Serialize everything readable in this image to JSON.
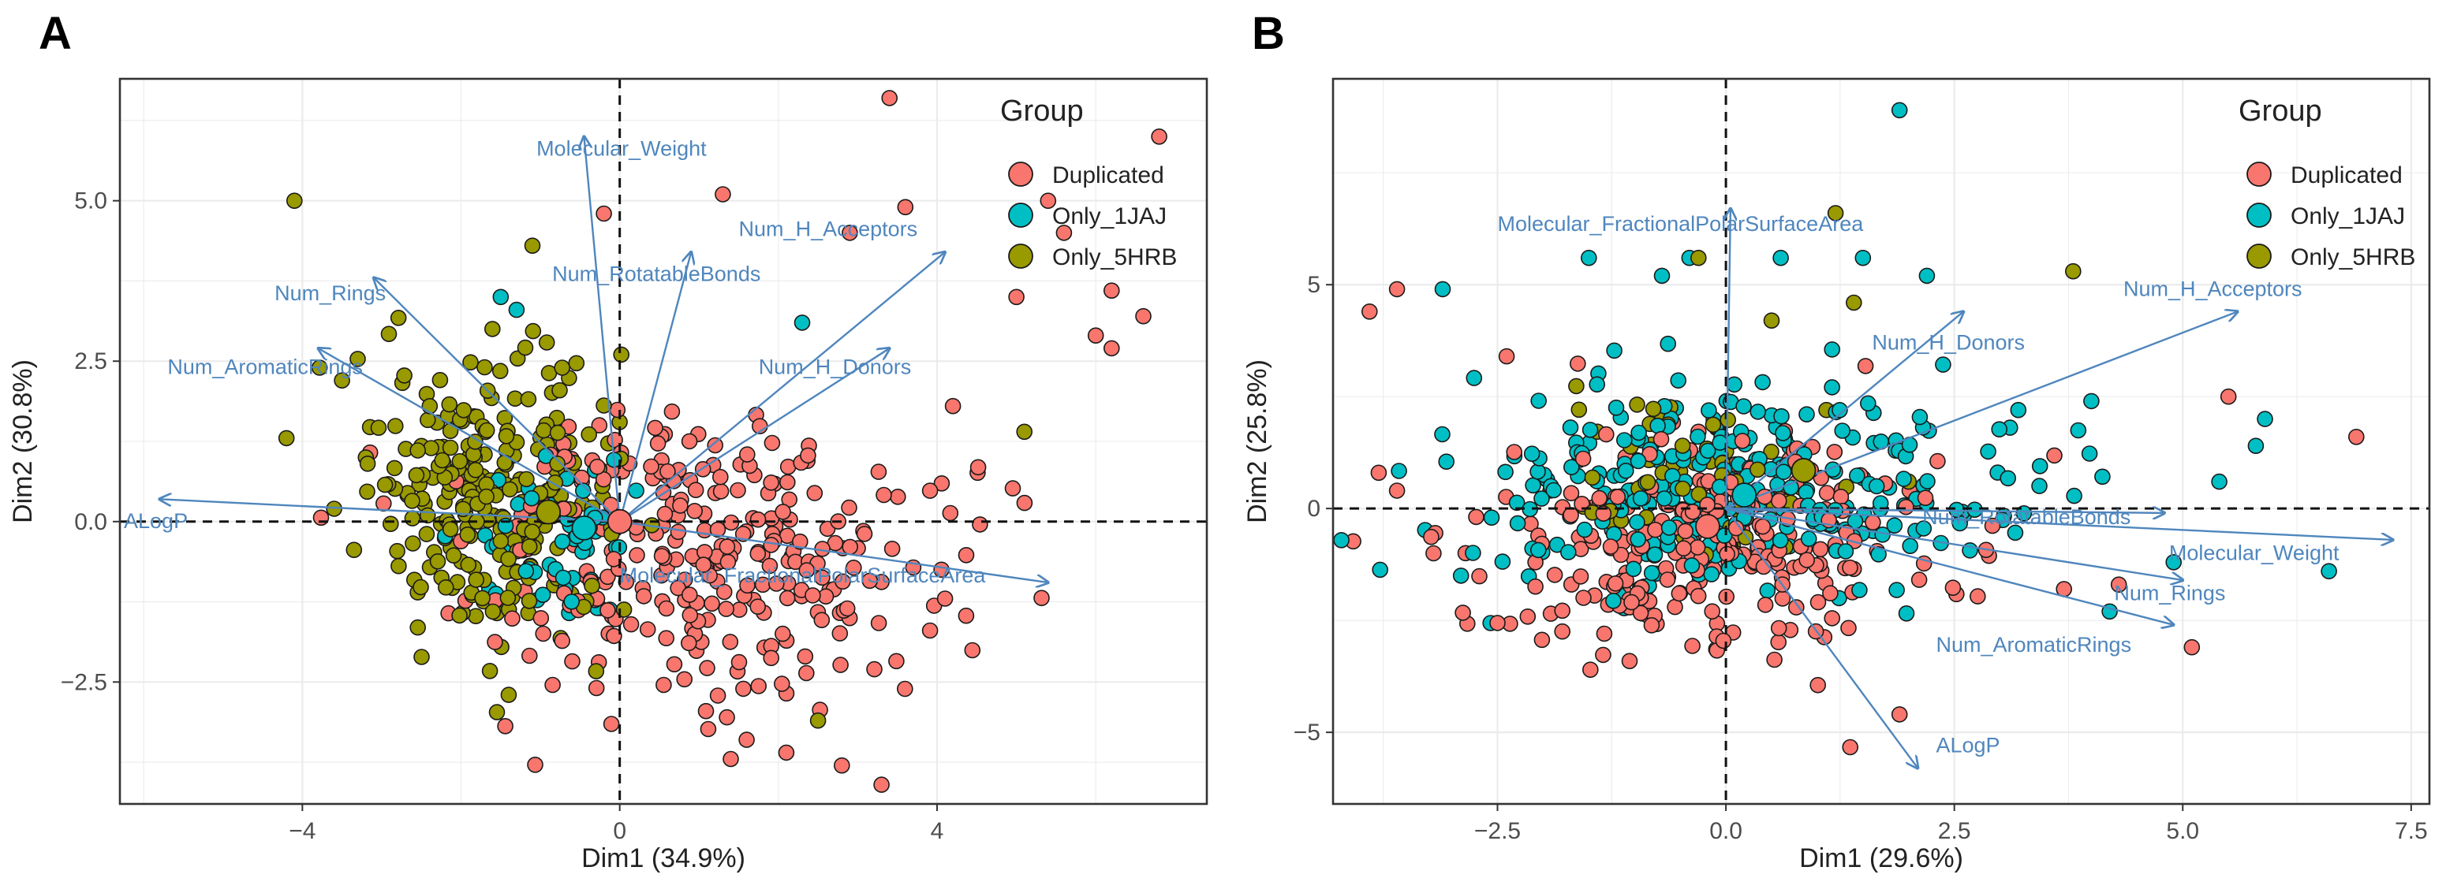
{
  "chart_data": [
    {
      "panel": "A",
      "type": "scatter",
      "subtype": "pca-biplot",
      "xlabel": "Dim1 (34.9%)",
      "ylabel": "Dim2 (30.8%)",
      "xlim": [
        -6.3,
        7.4
      ],
      "ylim": [
        -4.4,
        6.9
      ],
      "xticks": [
        -4,
        0,
        4
      ],
      "xtick_labels": [
        "−4",
        "0",
        "4"
      ],
      "yticks": [
        -2.5,
        0.0,
        2.5,
        5.0
      ],
      "ytick_labels": [
        "−2.5",
        "0.0",
        "2.5",
        "5.0"
      ],
      "grid": true,
      "legend": {
        "title": "Group",
        "position": "top-right",
        "entries": [
          "Duplicated",
          "Only_1JAJ",
          "Only_5HRB"
        ]
      },
      "clouds": [
        {
          "group": "Duplicated",
          "center": [
            1.0,
            -0.6
          ],
          "spread": [
            1.45,
            1.15
          ],
          "n": 300
        },
        {
          "group": "Only_5HRB",
          "center": [
            -1.7,
            0.5
          ],
          "spread": [
            0.75,
            1.05
          ],
          "n": 260
        },
        {
          "group": "Only_1JAJ",
          "center": [
            -0.8,
            -0.2
          ],
          "spread": [
            0.55,
            0.6
          ],
          "n": 60
        }
      ],
      "outliers": [
        {
          "group": "Duplicated",
          "points": [
            [
              3.4,
              6.6
            ],
            [
              6.8,
              6.0
            ],
            [
              6.2,
              3.6
            ],
            [
              6.6,
              3.2
            ],
            [
              6.0,
              2.9
            ],
            [
              6.2,
              2.7
            ],
            [
              5.6,
              4.5
            ],
            [
              5.4,
              5.0
            ],
            [
              1.3,
              5.1
            ],
            [
              -0.2,
              4.8
            ],
            [
              2.9,
              4.5
            ],
            [
              3.6,
              4.9
            ],
            [
              5.0,
              3.5
            ],
            [
              4.2,
              1.8
            ],
            [
              2.1,
              -3.6
            ],
            [
              1.4,
              -3.7
            ],
            [
              2.8,
              -3.8
            ],
            [
              3.3,
              -4.1
            ],
            [
              1.6,
              -3.4
            ],
            [
              4.1,
              -1.2
            ]
          ]
        },
        {
          "group": "Only_5HRB",
          "points": [
            [
              -4.1,
              5.0
            ],
            [
              -3.6,
              0.2
            ],
            [
              -4.2,
              1.3
            ],
            [
              -1.4,
              -2.7
            ],
            [
              -3.2,
              1.0
            ],
            [
              -1.1,
              4.3
            ],
            [
              -3.5,
              2.2
            ],
            [
              2.5,
              -3.1
            ],
            [
              5.1,
              1.4
            ]
          ]
        },
        {
          "group": "Only_1JAJ",
          "points": [
            [
              2.3,
              3.1
            ],
            [
              -1.3,
              3.3
            ],
            [
              -1.5,
              3.5
            ]
          ]
        }
      ],
      "group_means": [
        {
          "group": "Duplicated",
          "x": 0.0,
          "y": 0.0
        },
        {
          "group": "Only_5HRB",
          "x": -0.9,
          "y": 0.15
        },
        {
          "group": "Only_1JAJ",
          "x": -0.45,
          "y": -0.1
        }
      ],
      "variables": [
        {
          "name": "Molecular_Weight",
          "x": -0.45,
          "y": 6.0,
          "label": "Molecular_Weight",
          "lx": -1.05,
          "ly": 5.7,
          "anchor": "start"
        },
        {
          "name": "Num_H_Acceptors",
          "x": 4.1,
          "y": 4.2,
          "label": "Num_H_Acceptors",
          "lx": 1.5,
          "ly": 4.45,
          "anchor": "start"
        },
        {
          "name": "Num_RotatableBonds",
          "x": 0.9,
          "y": 4.2,
          "label": "Num_RotatableBonds",
          "lx": -0.85,
          "ly": 3.75,
          "anchor": "start"
        },
        {
          "name": "Num_Rings",
          "x": -3.1,
          "y": 3.8,
          "label": "Num_Rings",
          "lx": -4.35,
          "ly": 3.45,
          "anchor": "start"
        },
        {
          "name": "Num_AromaticRings",
          "x": -3.8,
          "y": 2.7,
          "label": "Num_AromaticRings",
          "lx": -5.7,
          "ly": 2.3,
          "anchor": "start"
        },
        {
          "name": "Num_H_Donors",
          "x": 3.4,
          "y": 2.7,
          "label": "Num_H_Donors",
          "lx": 1.75,
          "ly": 2.3,
          "anchor": "start"
        },
        {
          "name": "ALogP",
          "x": -5.8,
          "y": 0.35,
          "label": "ALogP",
          "lx": -6.25,
          "ly": -0.1,
          "anchor": "start"
        },
        {
          "name": "Molecular_FractionalPolarSurfaceArea",
          "x": 5.4,
          "y": -0.95,
          "label": "Molecular_FractionalPolarSurfaceArea",
          "lx": 0.0,
          "ly": -0.95,
          "anchor": "start"
        }
      ]
    },
    {
      "panel": "B",
      "type": "scatter",
      "subtype": "pca-biplot",
      "xlabel": "Dim1 (29.6%)",
      "ylabel": "Dim2 (25.8%)",
      "xlim": [
        -4.3,
        7.7
      ],
      "ylim": [
        -6.6,
        9.6
      ],
      "xticks": [
        -2.5,
        0.0,
        2.5,
        5.0,
        7.5
      ],
      "xtick_labels": [
        "−2.5",
        "0.0",
        "2.5",
        "5.0",
        "7.5"
      ],
      "yticks": [
        -5,
        0,
        5
      ],
      "ytick_labels": [
        "−5",
        "0",
        "5"
      ],
      "grid": true,
      "legend": {
        "title": "Group",
        "position": "top-right",
        "entries": [
          "Duplicated",
          "Only_1JAJ",
          "Only_5HRB"
        ]
      },
      "clouds": [
        {
          "group": "Duplicated",
          "center": [
            -0.2,
            -0.9
          ],
          "spread": [
            1.25,
            1.25
          ],
          "n": 280
        },
        {
          "group": "Only_1JAJ",
          "center": [
            0.1,
            0.4
          ],
          "spread": [
            1.5,
            1.2
          ],
          "n": 300
        },
        {
          "group": "Only_5HRB",
          "center": [
            -0.3,
            0.7
          ],
          "spread": [
            0.8,
            0.9
          ],
          "n": 60
        }
      ],
      "outliers": [
        {
          "group": "Duplicated",
          "points": [
            [
              -3.6,
              4.9
            ],
            [
              -3.9,
              4.4
            ],
            [
              -2.4,
              3.4
            ],
            [
              5.1,
              -3.1
            ],
            [
              4.3,
              -1.7
            ],
            [
              3.7,
              -1.8
            ],
            [
              1.9,
              -4.6
            ],
            [
              6.9,
              1.6
            ],
            [
              5.5,
              2.5
            ],
            [
              -3.8,
              0.8
            ],
            [
              -3.6,
              0.4
            ],
            [
              -3.2,
              -1.0
            ]
          ]
        },
        {
          "group": "Only_1JAJ",
          "points": [
            [
              1.9,
              8.9
            ],
            [
              6.6,
              -1.4
            ],
            [
              5.8,
              1.4
            ],
            [
              5.4,
              0.6
            ],
            [
              4.2,
              -2.3
            ],
            [
              -3.1,
              4.9
            ],
            [
              -1.5,
              5.6
            ],
            [
              -0.7,
              5.2
            ],
            [
              1.5,
              5.6
            ],
            [
              -2.9,
              -1.5
            ],
            [
              2.2,
              5.2
            ],
            [
              4.0,
              2.4
            ],
            [
              3.2,
              2.2
            ],
            [
              4.9,
              -1.2
            ],
            [
              5.9,
              2.0
            ],
            [
              0.6,
              5.6
            ],
            [
              -0.4,
              5.6
            ]
          ]
        },
        {
          "group": "Only_5HRB",
          "points": [
            [
              1.2,
              6.6
            ],
            [
              3.8,
              5.3
            ],
            [
              1.4,
              4.6
            ],
            [
              0.5,
              4.2
            ],
            [
              -0.3,
              5.6
            ],
            [
              1.1,
              2.2
            ],
            [
              2.0,
              0.6
            ]
          ]
        }
      ],
      "group_means": [
        {
          "group": "Duplicated",
          "x": -0.2,
          "y": -0.4
        },
        {
          "group": "Only_5HRB",
          "x": 0.85,
          "y": 0.85
        },
        {
          "group": "Only_1JAJ",
          "x": 0.2,
          "y": 0.3
        }
      ],
      "variables": [
        {
          "name": "Molecular_FractionalPolarSurfaceArea",
          "x": 0.05,
          "y": 6.7,
          "label": "Molecular_FractionalPolarSurfaceArea",
          "lx": -2.5,
          "ly": 6.2,
          "anchor": "start"
        },
        {
          "name": "Num_H_Acceptors",
          "x": 5.6,
          "y": 4.4,
          "label": "Num_H_Acceptors",
          "lx": 4.35,
          "ly": 4.75,
          "anchor": "start"
        },
        {
          "name": "Num_H_Donors",
          "x": 2.6,
          "y": 4.4,
          "label": "Num_H_Donors",
          "lx": 1.6,
          "ly": 3.55,
          "anchor": "start"
        },
        {
          "name": "Num_RotatableBonds",
          "x": 4.8,
          "y": -0.1,
          "label": "Num_RotatableBonds",
          "lx": 2.15,
          "ly": -0.35,
          "anchor": "start"
        },
        {
          "name": "Molecular_Weight",
          "x": 7.3,
          "y": -0.7,
          "label": "Molecular_Weight",
          "lx": 4.85,
          "ly": -1.15,
          "anchor": "start"
        },
        {
          "name": "Num_Rings",
          "x": 5.0,
          "y": -1.6,
          "label": "Num_Rings",
          "lx": 4.25,
          "ly": -2.05,
          "anchor": "start"
        },
        {
          "name": "Num_AromaticRings",
          "x": 4.9,
          "y": -2.6,
          "label": "Num_AromaticRings",
          "lx": 2.3,
          "ly": -3.2,
          "anchor": "start"
        },
        {
          "name": "ALogP",
          "x": 2.1,
          "y": -5.8,
          "label": "ALogP",
          "lx": 2.3,
          "ly": -5.45,
          "anchor": "start"
        }
      ]
    }
  ],
  "colors": {
    "Duplicated": "#f8766d",
    "Only_1JAJ": "#00bfc4",
    "Only_5HRB": "#999900",
    "arrow": "#4f86bd",
    "grid": "#ebebeb",
    "frame": "#333333"
  }
}
